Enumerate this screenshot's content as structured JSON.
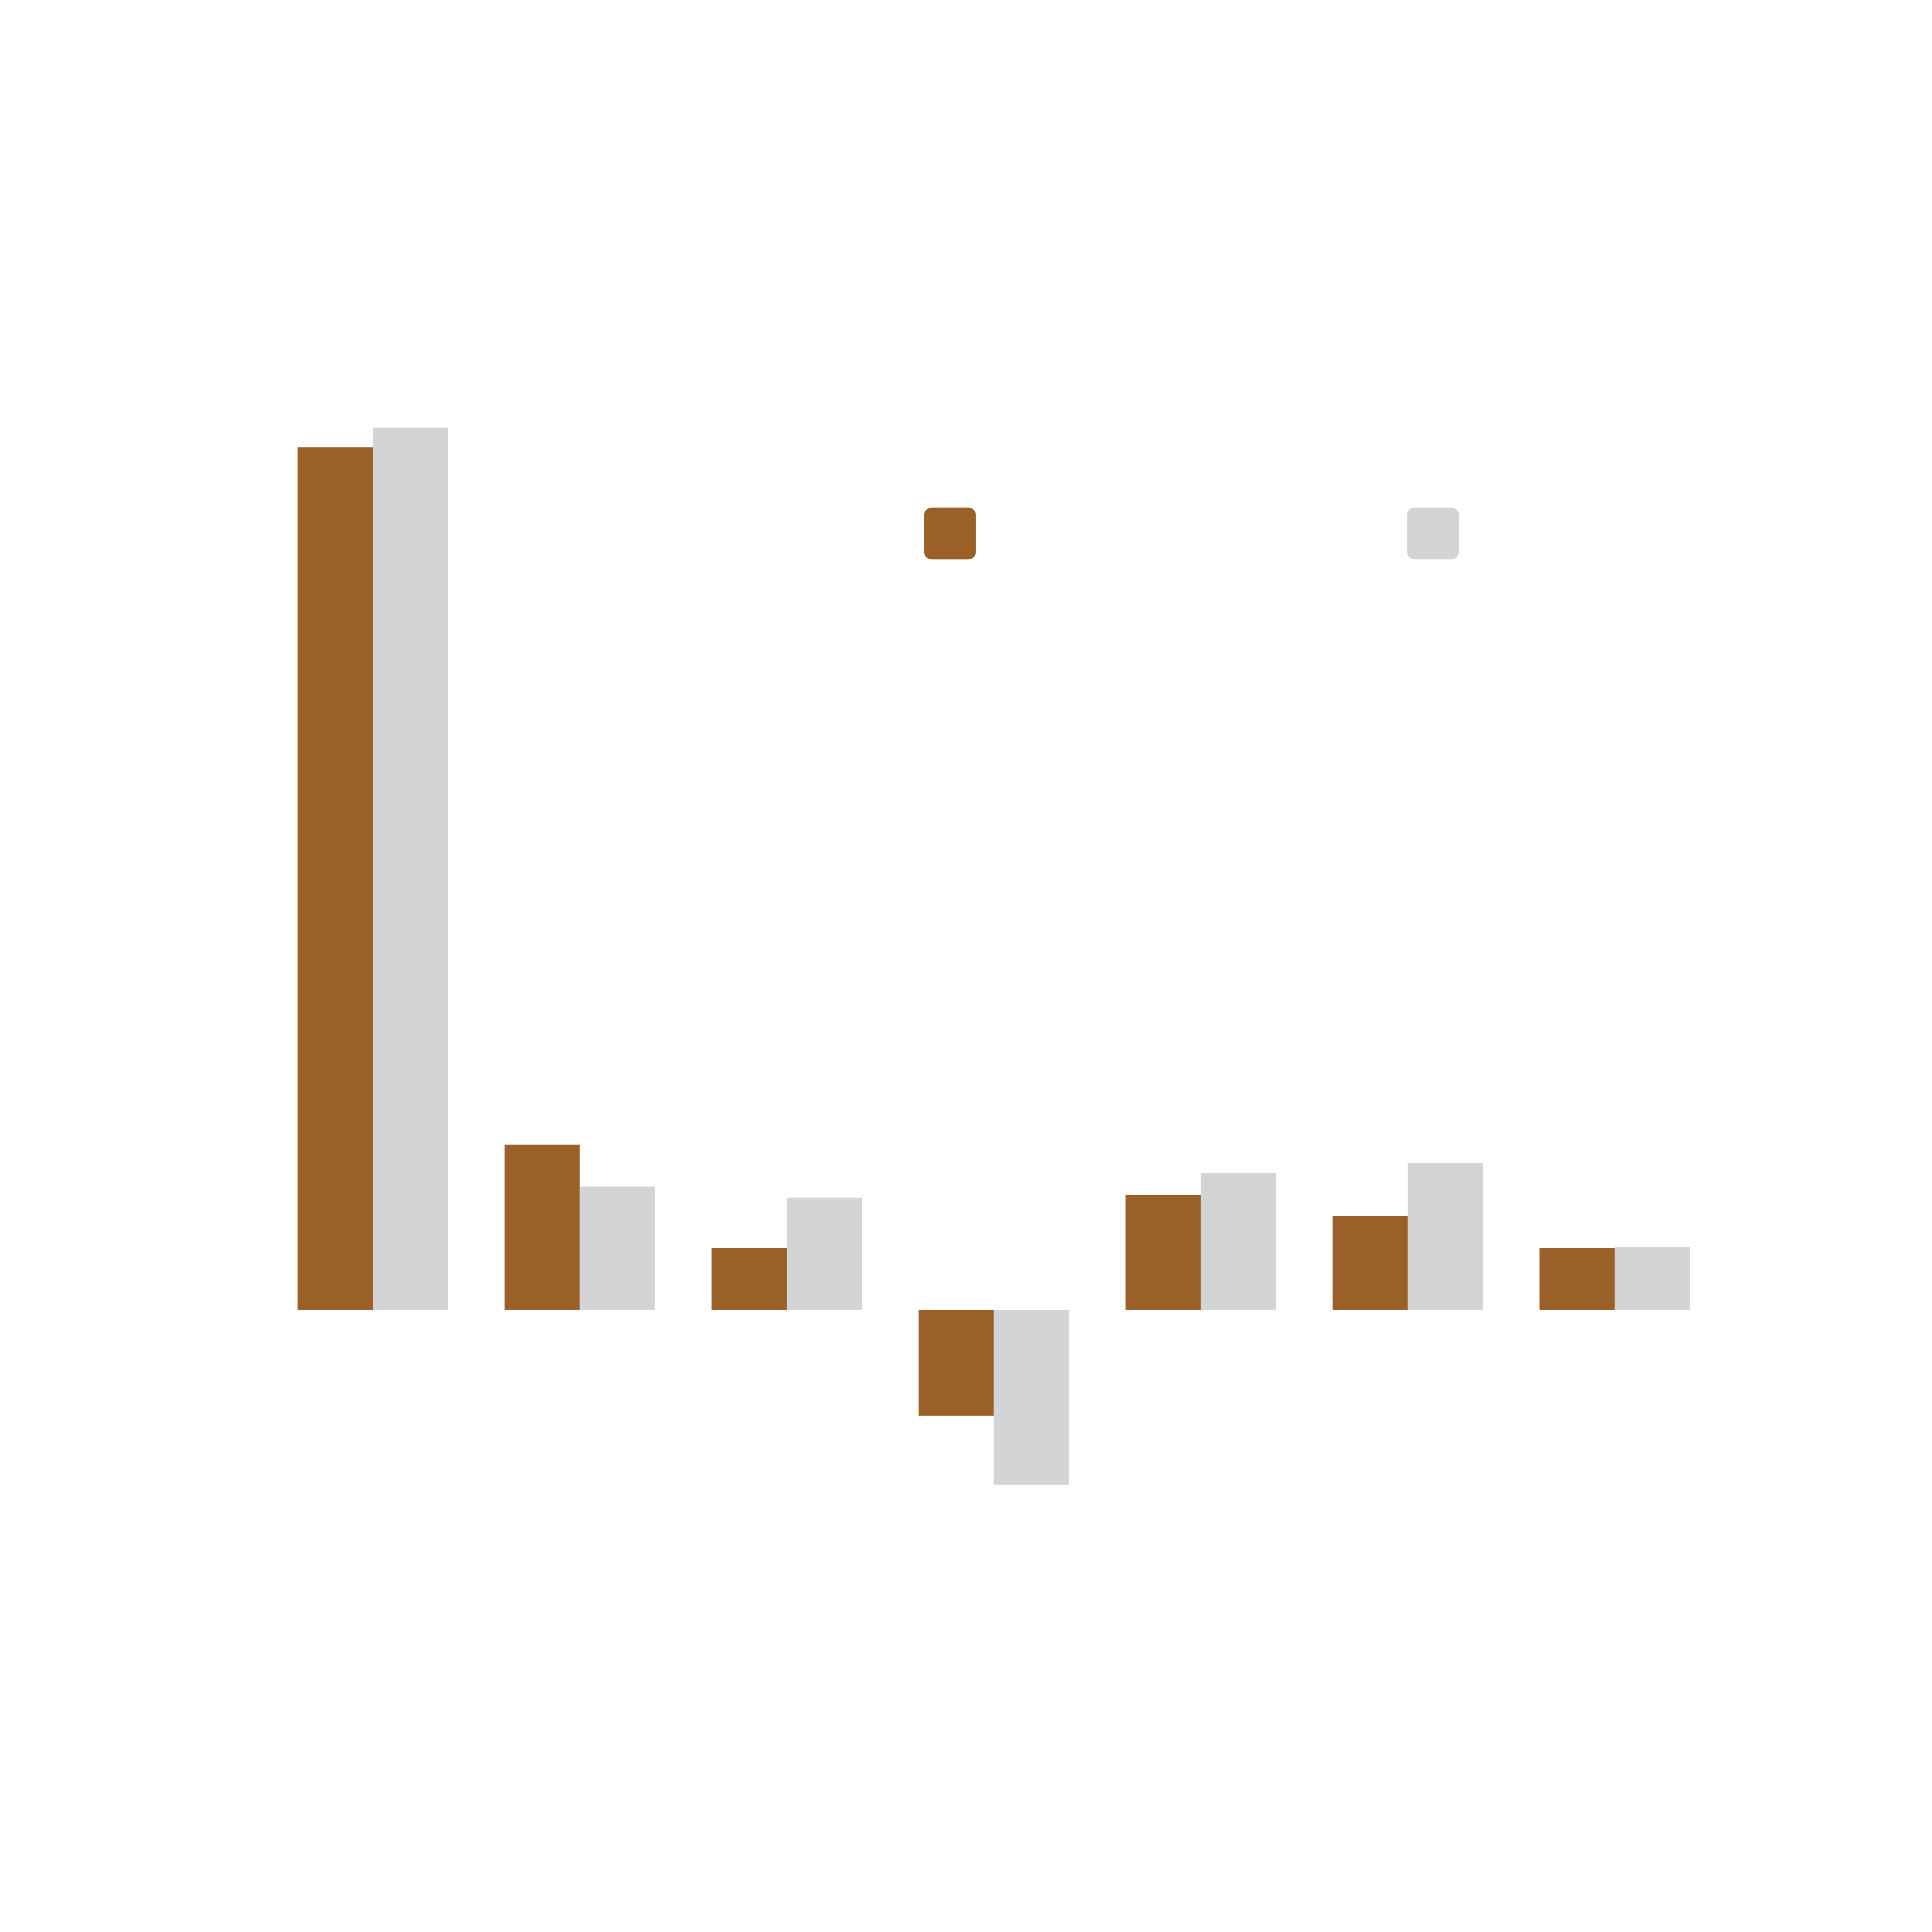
{
  "chart_data": {
    "type": "bar",
    "categories": [
      null,
      null,
      null,
      null,
      null,
      null,
      null
    ],
    "series": [
      {
        "color": "#9a6028",
        "values": [
          70,
          13.4,
          5,
          -8.6,
          9.3,
          7.6,
          5
        ]
      },
      {
        "color": "#d3d4d6",
        "values": [
          71.6,
          10,
          9.1,
          -14.2,
          11.1,
          11.9,
          5.1
        ]
      }
    ],
    "ylim": [
      -20,
      80
    ]
  }
}
